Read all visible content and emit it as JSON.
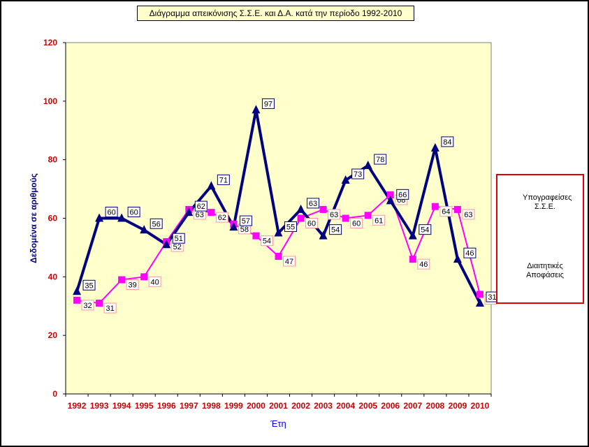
{
  "chart_data": {
    "type": "line",
    "title": "Διάγραμμα απεικόνισης Σ.Σ.Ε. και Δ.Α.  κατά την περίοδο 1992-2010",
    "xlabel": "Έτη",
    "ylabel": "Δεδομένα σε αριθμούς",
    "categories": [
      "1992",
      "1993",
      "1994",
      "1995",
      "1996",
      "1997",
      "1998",
      "1999",
      "2000",
      "2001",
      "2002",
      "2003",
      "2004",
      "2005",
      "2006",
      "2007",
      "2008",
      "2009",
      "2010"
    ],
    "ylim": [
      0,
      120
    ],
    "yticks": [
      "0",
      "20",
      "40",
      "60",
      "80",
      "100",
      "120"
    ],
    "grid": false,
    "legend_position": "right",
    "series": [
      {
        "name": "Υπογραφείσες Σ.Σ.Ε.",
        "color": "#000080",
        "marker": "triangle",
        "values": [
          35,
          60,
          60,
          56,
          51,
          62,
          71,
          57,
          97,
          55,
          63,
          54,
          73,
          78,
          66,
          54,
          84,
          46,
          31
        ]
      },
      {
        "name": "Διαιτητικές Αποφάσεις",
        "color": "#ff00ff",
        "marker": "square",
        "values": [
          32,
          31,
          39,
          40,
          52,
          63,
          62,
          58,
          54,
          47,
          60,
          63,
          60,
          61,
          68,
          46,
          64,
          63,
          34
        ]
      }
    ],
    "colors": {
      "plot_background": "#ffffcc",
      "axis_label": "#cc0000",
      "ylabel": "#000080",
      "xlabel": "#0000ff"
    }
  }
}
